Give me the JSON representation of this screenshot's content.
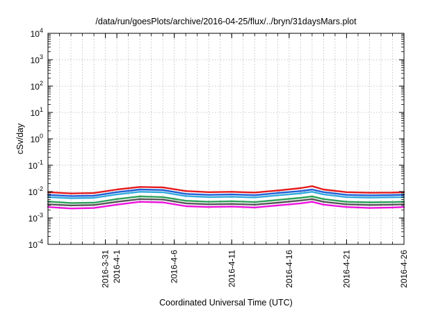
{
  "chart_data": {
    "type": "line",
    "title": "/data/run/goesPlots/archive/2016-04-25/flux/../bryn/31daysMars.plot",
    "xlabel": "Coordinated Universal Time (UTC)",
    "ylabel": "cSv/day",
    "y_scale": "log",
    "ylim": [
      0.0001,
      10000
    ],
    "xlim": [
      "2016-03-26",
      "2016-04-26"
    ],
    "grid": true,
    "y_ticks": [
      {
        "value": 0.0001,
        "base": "10",
        "exp": "-4"
      },
      {
        "value": 0.001,
        "base": "10",
        "exp": "-3"
      },
      {
        "value": 0.01,
        "base": "10",
        "exp": "-2"
      },
      {
        "value": 0.1,
        "base": "10",
        "exp": "-1"
      },
      {
        "value": 1,
        "base": "10",
        "exp": "0"
      },
      {
        "value": 10,
        "base": "10",
        "exp": "1"
      },
      {
        "value": 100,
        "base": "10",
        "exp": "2"
      },
      {
        "value": 1000,
        "base": "10",
        "exp": "3"
      },
      {
        "value": 10000,
        "base": "10",
        "exp": "4"
      }
    ],
    "x_ticks": [
      {
        "x": "2016-03-31",
        "label": "2016-3-31"
      },
      {
        "x": "2016-04-01",
        "label": "2016-4-1"
      },
      {
        "x": "2016-04-06",
        "label": "2016-4-6"
      },
      {
        "x": "2016-04-11",
        "label": "2016-4-11"
      },
      {
        "x": "2016-04-16",
        "label": "2016-4-16"
      },
      {
        "x": "2016-04-21",
        "label": "2016-4-21"
      },
      {
        "x": "2016-04-26",
        "label": "2016-4-26"
      }
    ],
    "series": [
      {
        "color": "#e41a1c",
        "x": [
          "2016-03-26",
          "2016-03-28",
          "2016-03-30",
          "2016-04-01",
          "2016-04-03",
          "2016-04-05",
          "2016-04-07",
          "2016-04-09",
          "2016-04-11",
          "2016-04-13",
          "2016-04-15",
          "2016-04-17",
          "2016-04-18",
          "2016-04-19",
          "2016-04-21",
          "2016-04-23",
          "2016-04-25",
          "2016-04-26"
        ],
        "y": [
          0.0095,
          0.0085,
          0.0088,
          0.012,
          0.015,
          0.0145,
          0.0105,
          0.0095,
          0.0098,
          0.0092,
          0.011,
          0.0135,
          0.016,
          0.012,
          0.0095,
          0.009,
          0.0092,
          0.0095
        ]
      },
      {
        "color": "#1f5fd6",
        "x": [
          "2016-03-26",
          "2016-03-28",
          "2016-03-30",
          "2016-04-01",
          "2016-04-03",
          "2016-04-05",
          "2016-04-07",
          "2016-04-09",
          "2016-04-11",
          "2016-04-13",
          "2016-04-15",
          "2016-04-17",
          "2016-04-18",
          "2016-04-19",
          "2016-04-21",
          "2016-04-23",
          "2016-04-25",
          "2016-04-26"
        ],
        "y": [
          0.0075,
          0.0068,
          0.007,
          0.0095,
          0.012,
          0.0115,
          0.0082,
          0.0075,
          0.0078,
          0.0073,
          0.0088,
          0.0105,
          0.012,
          0.0095,
          0.0075,
          0.0072,
          0.0074,
          0.0076
        ]
      },
      {
        "color": "#33aadd",
        "x": [
          "2016-03-26",
          "2016-03-28",
          "2016-03-30",
          "2016-04-01",
          "2016-04-03",
          "2016-04-05",
          "2016-04-07",
          "2016-04-09",
          "2016-04-11",
          "2016-04-13",
          "2016-04-15",
          "2016-04-17",
          "2016-04-18",
          "2016-04-19",
          "2016-04-21",
          "2016-04-23",
          "2016-04-25",
          "2016-04-26"
        ],
        "y": [
          0.0062,
          0.0056,
          0.0058,
          0.0078,
          0.0098,
          0.0094,
          0.0068,
          0.0062,
          0.0064,
          0.006,
          0.0072,
          0.0086,
          0.0098,
          0.0078,
          0.0062,
          0.0059,
          0.0061,
          0.0062
        ]
      },
      {
        "color": "#2ca05a",
        "x": [
          "2016-03-26",
          "2016-03-28",
          "2016-03-30",
          "2016-04-01",
          "2016-04-03",
          "2016-04-05",
          "2016-04-07",
          "2016-04-09",
          "2016-04-11",
          "2016-04-13",
          "2016-04-15",
          "2016-04-17",
          "2016-04-18",
          "2016-04-19",
          "2016-04-21",
          "2016-04-23",
          "2016-04-25",
          "2016-04-26"
        ],
        "y": [
          0.0042,
          0.0037,
          0.0038,
          0.0052,
          0.0066,
          0.0062,
          0.0045,
          0.0041,
          0.0043,
          0.004,
          0.0048,
          0.0058,
          0.0066,
          0.0052,
          0.0041,
          0.0039,
          0.004,
          0.0041
        ]
      },
      {
        "color": "#555555",
        "x": [
          "2016-03-26",
          "2016-03-28",
          "2016-03-30",
          "2016-04-01",
          "2016-04-03",
          "2016-04-05",
          "2016-04-07",
          "2016-04-09",
          "2016-04-11",
          "2016-04-13",
          "2016-04-15",
          "2016-04-17",
          "2016-04-18",
          "2016-04-19",
          "2016-04-21",
          "2016-04-23",
          "2016-04-25",
          "2016-04-26"
        ],
        "y": [
          0.0033,
          0.003,
          0.0031,
          0.0041,
          0.0052,
          0.005,
          0.0036,
          0.0033,
          0.0034,
          0.0032,
          0.0038,
          0.0046,
          0.0052,
          0.0041,
          0.0033,
          0.0031,
          0.0032,
          0.0033
        ]
      },
      {
        "color": "#ee11dd",
        "x": [
          "2016-03-26",
          "2016-03-28",
          "2016-03-30",
          "2016-04-01",
          "2016-04-03",
          "2016-04-05",
          "2016-04-07",
          "2016-04-09",
          "2016-04-11",
          "2016-04-13",
          "2016-04-15",
          "2016-04-17",
          "2016-04-18",
          "2016-04-19",
          "2016-04-21",
          "2016-04-23",
          "2016-04-25",
          "2016-04-26"
        ],
        "y": [
          0.0026,
          0.0023,
          0.0024,
          0.0032,
          0.0041,
          0.0039,
          0.0028,
          0.0026,
          0.0027,
          0.0025,
          0.003,
          0.0036,
          0.0041,
          0.0032,
          0.0026,
          0.0024,
          0.0025,
          0.0026
        ]
      }
    ]
  }
}
